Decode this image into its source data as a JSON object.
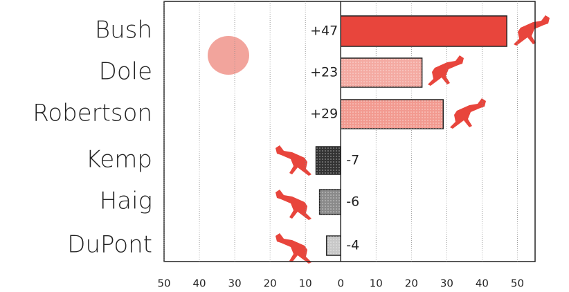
{
  "chart_data": {
    "type": "diverging-bar",
    "categories": [
      "Bush",
      "Dole",
      "Robertson",
      "Kemp",
      "Haig",
      "DuPont"
    ],
    "values": [
      47,
      23,
      29,
      -7,
      -6,
      -4
    ],
    "value_labels": [
      "+47",
      "+23",
      "+29",
      "-7",
      "-6",
      "-4"
    ],
    "colors": [
      "#e8453c",
      "#f4aaa2",
      "#f29a90",
      "#333333",
      "#8a8a8a",
      "#c8c8c8"
    ],
    "xlim": [
      -50,
      55
    ],
    "xticks": [
      {
        "value": -50,
        "label": "50"
      },
      {
        "value": -40,
        "label": "40"
      },
      {
        "value": -30,
        "label": "30"
      },
      {
        "value": -20,
        "label": "20"
      },
      {
        "value": -10,
        "label": "10"
      },
      0,
      10,
      20,
      30,
      40,
      50
    ],
    "grid": true
  }
}
